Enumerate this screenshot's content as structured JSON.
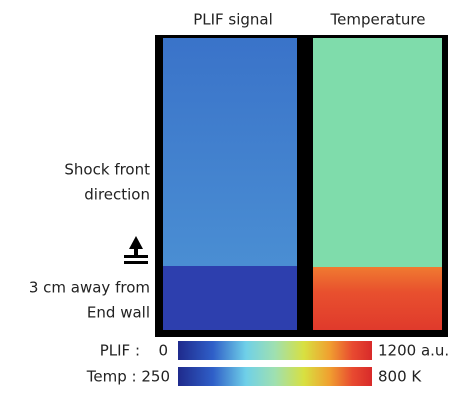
{
  "panels": [
    {
      "title": "PLIF signal"
    },
    {
      "title": "Temperature"
    }
  ],
  "side_labels": {
    "direction_lines": [
      "Shock front",
      "direction"
    ],
    "position_lines": [
      "3 cm away from",
      "End wall"
    ]
  },
  "colorbars": [
    {
      "label": "PLIF :",
      "min": "0",
      "max": "1200 a.u."
    },
    {
      "label": "Temp : 250",
      "max": "800 K"
    }
  ]
}
